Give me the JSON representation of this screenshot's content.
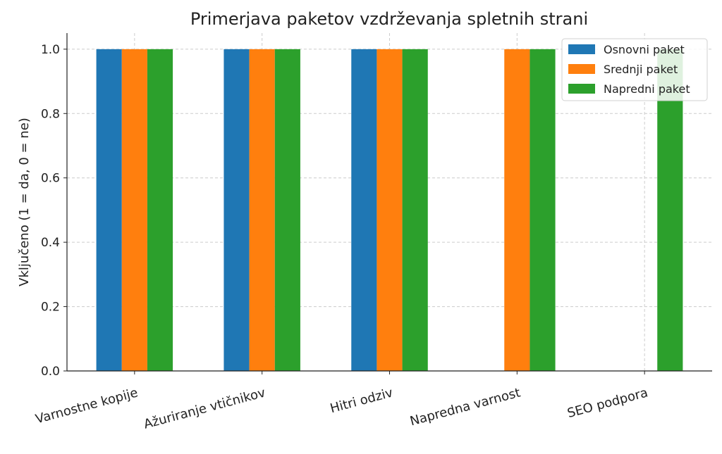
{
  "chart_data": {
    "type": "bar",
    "title": "Primerjava paketov vzdrževanja spletnih strani",
    "xlabel": "",
    "ylabel": "Vključeno (1 = da, 0 = ne)",
    "ylim": [
      0,
      1.05
    ],
    "yticks": [
      "0.0",
      "0.2",
      "0.4",
      "0.6",
      "0.8",
      "1.0"
    ],
    "categories": [
      "Varnostne kopije",
      "Ažuriranje vtičnikov",
      "Hitri odziv",
      "Napredna varnost",
      "SEO podpora"
    ],
    "series": [
      {
        "name": "Osnovni paket",
        "color": "#1f77b4",
        "values": [
          1,
          1,
          1,
          0,
          0
        ]
      },
      {
        "name": "Srednji paket",
        "color": "#ff7f0e",
        "values": [
          1,
          1,
          1,
          1,
          0
        ]
      },
      {
        "name": "Napredni paket",
        "color": "#2ca02c",
        "values": [
          1,
          1,
          1,
          1,
          1
        ]
      }
    ],
    "grid": true,
    "legend": "top-right"
  }
}
